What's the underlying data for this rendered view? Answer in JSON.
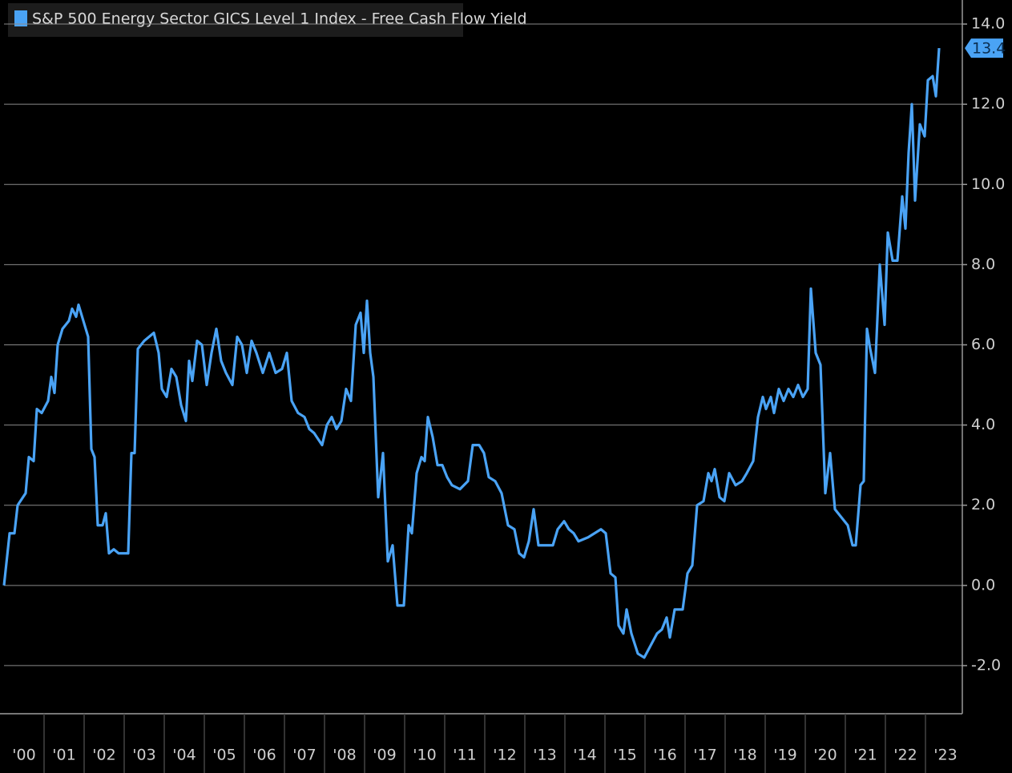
{
  "chart_data": {
    "type": "line",
    "categories": [
      "'00",
      "'01",
      "'02",
      "'03",
      "'04",
      "'05",
      "'06",
      "'07",
      "'08",
      "'09",
      "'10",
      "'11",
      "'12",
      "'13",
      "'14",
      "'15",
      "'16",
      "'17",
      "'18",
      "'19",
      "'20",
      "'21",
      "'22",
      "'23"
    ],
    "xlim": [
      2000,
      2023.9
    ],
    "ylim": [
      -3.2,
      14.6
    ],
    "yticks": [
      {
        "value": -2,
        "label": "-2.0"
      },
      {
        "value": 0,
        "label": "0.0"
      },
      {
        "value": 2,
        "label": "2.0"
      },
      {
        "value": 4,
        "label": "4.0"
      },
      {
        "value": 6,
        "label": "6.0"
      },
      {
        "value": 8,
        "label": "8.0"
      },
      {
        "value": 10,
        "label": "10.0"
      },
      {
        "value": 12,
        "label": "12.0"
      },
      {
        "value": 14,
        "label": "14.0"
      }
    ],
    "grid": true,
    "series": [
      {
        "name": "S&P 500 Energy Sector GICS Level 1 Index - Free Cash Flow Yield",
        "color": "#4aa3f5",
        "x": [
          2000.0,
          2000.14,
          2000.26,
          2000.34,
          2000.54,
          2000.62,
          2000.74,
          2000.82,
          2000.94,
          2001.1,
          2001.18,
          2001.26,
          2001.34,
          2001.46,
          2001.62,
          2001.7,
          2001.8,
          2001.86,
          2001.98,
          2002.1,
          2002.18,
          2002.26,
          2002.34,
          2002.46,
          2002.54,
          2002.62,
          2002.74,
          2002.86,
          2003.1,
          2003.18,
          2003.26,
          2003.34,
          2003.5,
          2003.74,
          2003.86,
          2003.94,
          2004.06,
          2004.18,
          2004.3,
          2004.42,
          2004.54,
          2004.62,
          2004.7,
          2004.82,
          2004.94,
          2005.06,
          2005.18,
          2005.3,
          2005.42,
          2005.54,
          2005.7,
          2005.82,
          2005.94,
          2006.06,
          2006.18,
          2006.3,
          2006.46,
          2006.62,
          2006.78,
          2006.94,
          2007.06,
          2007.18,
          2007.34,
          2007.5,
          2007.62,
          2007.74,
          2007.94,
          2008.06,
          2008.18,
          2008.3,
          2008.42,
          2008.54,
          2008.66,
          2008.78,
          2008.9,
          2008.98,
          2009.06,
          2009.14,
          2009.22,
          2009.34,
          2009.46,
          2009.58,
          2009.7,
          2009.82,
          2009.98,
          2010.1,
          2010.18,
          2010.3,
          2010.42,
          2010.5,
          2010.58,
          2010.7,
          2010.82,
          2010.94,
          2011.06,
          2011.18,
          2011.38,
          2011.58,
          2011.7,
          2011.86,
          2011.98,
          2012.1,
          2012.26,
          2012.42,
          2012.58,
          2012.74,
          2012.86,
          2012.98,
          2013.1,
          2013.22,
          2013.34,
          2013.5,
          2013.7,
          2013.82,
          2013.98,
          2014.1,
          2014.22,
          2014.34,
          2014.58,
          2014.74,
          2014.9,
          2015.02,
          2015.14,
          2015.26,
          2015.34,
          2015.46,
          2015.54,
          2015.66,
          2015.82,
          2015.98,
          2016.14,
          2016.3,
          2016.42,
          2016.54,
          2016.62,
          2016.74,
          2016.94,
          2017.06,
          2017.18,
          2017.3,
          2017.46,
          2017.58,
          2017.66,
          2017.74,
          2017.86,
          2017.98,
          2018.1,
          2018.26,
          2018.42,
          2018.54,
          2018.7,
          2018.82,
          2018.94,
          2019.02,
          2019.14,
          2019.22,
          2019.34,
          2019.46,
          2019.58,
          2019.7,
          2019.82,
          2019.94,
          2020.06,
          2020.14,
          2020.26,
          2020.38,
          2020.5,
          2020.62,
          2020.74,
          2020.9,
          2021.06,
          2021.18,
          2021.26,
          2021.38,
          2021.46,
          2021.54,
          2021.62,
          2021.74,
          2021.86,
          2021.98,
          2022.06,
          2022.18,
          2022.3,
          2022.42,
          2022.5,
          2022.58,
          2022.66,
          2022.74,
          2022.86,
          2022.98,
          2023.06,
          2023.18,
          2023.26,
          2023.34
        ],
        "values": [
          0.0,
          1.3,
          1.3,
          2.0,
          2.3,
          3.2,
          3.1,
          4.4,
          4.3,
          4.6,
          5.2,
          4.8,
          6.0,
          6.4,
          6.6,
          6.9,
          6.7,
          7.0,
          6.6,
          6.2,
          3.4,
          3.2,
          1.5,
          1.5,
          1.8,
          0.8,
          0.9,
          0.8,
          0.8,
          3.3,
          3.3,
          5.9,
          6.1,
          6.3,
          5.8,
          4.9,
          4.7,
          5.4,
          5.2,
          4.5,
          4.1,
          5.6,
          5.1,
          6.1,
          6.0,
          5.0,
          5.8,
          6.4,
          5.6,
          5.3,
          5.0,
          6.2,
          6.0,
          5.3,
          6.1,
          5.8,
          5.3,
          5.8,
          5.3,
          5.4,
          5.8,
          4.6,
          4.3,
          4.2,
          3.9,
          3.8,
          3.5,
          4.0,
          4.2,
          3.9,
          4.1,
          4.9,
          4.6,
          6.5,
          6.8,
          5.8,
          7.1,
          5.8,
          5.2,
          2.2,
          3.3,
          0.6,
          1.0,
          -0.5,
          -0.5,
          1.5,
          1.3,
          2.8,
          3.2,
          3.1,
          4.2,
          3.7,
          3.0,
          3.0,
          2.7,
          2.5,
          2.4,
          2.6,
          3.5,
          3.5,
          3.3,
          2.7,
          2.6,
          2.3,
          1.5,
          1.4,
          0.8,
          0.7,
          1.1,
          1.9,
          1.0,
          1.0,
          1.0,
          1.4,
          1.6,
          1.4,
          1.3,
          1.1,
          1.2,
          1.3,
          1.4,
          1.3,
          0.3,
          0.2,
          -1.0,
          -1.2,
          -0.6,
          -1.2,
          -1.7,
          -1.8,
          -1.5,
          -1.2,
          -1.1,
          -0.8,
          -1.3,
          -0.6,
          -0.6,
          0.3,
          0.5,
          2.0,
          2.1,
          2.8,
          2.6,
          2.9,
          2.2,
          2.1,
          2.8,
          2.5,
          2.6,
          2.8,
          3.1,
          4.2,
          4.7,
          4.4,
          4.7,
          4.3,
          4.9,
          4.6,
          4.9,
          4.7,
          5.0,
          4.7,
          4.9,
          7.4,
          5.8,
          5.5,
          2.3,
          3.3,
          1.9,
          1.7,
          1.5,
          1.0,
          1.0,
          2.5,
          2.6,
          6.4,
          5.9,
          5.3,
          8.0,
          6.5,
          8.8,
          8.1,
          8.1,
          9.7,
          8.9,
          10.8,
          12.0,
          9.6,
          11.5,
          11.2,
          12.6,
          12.7,
          12.2,
          13.4
        ]
      }
    ]
  }
}
